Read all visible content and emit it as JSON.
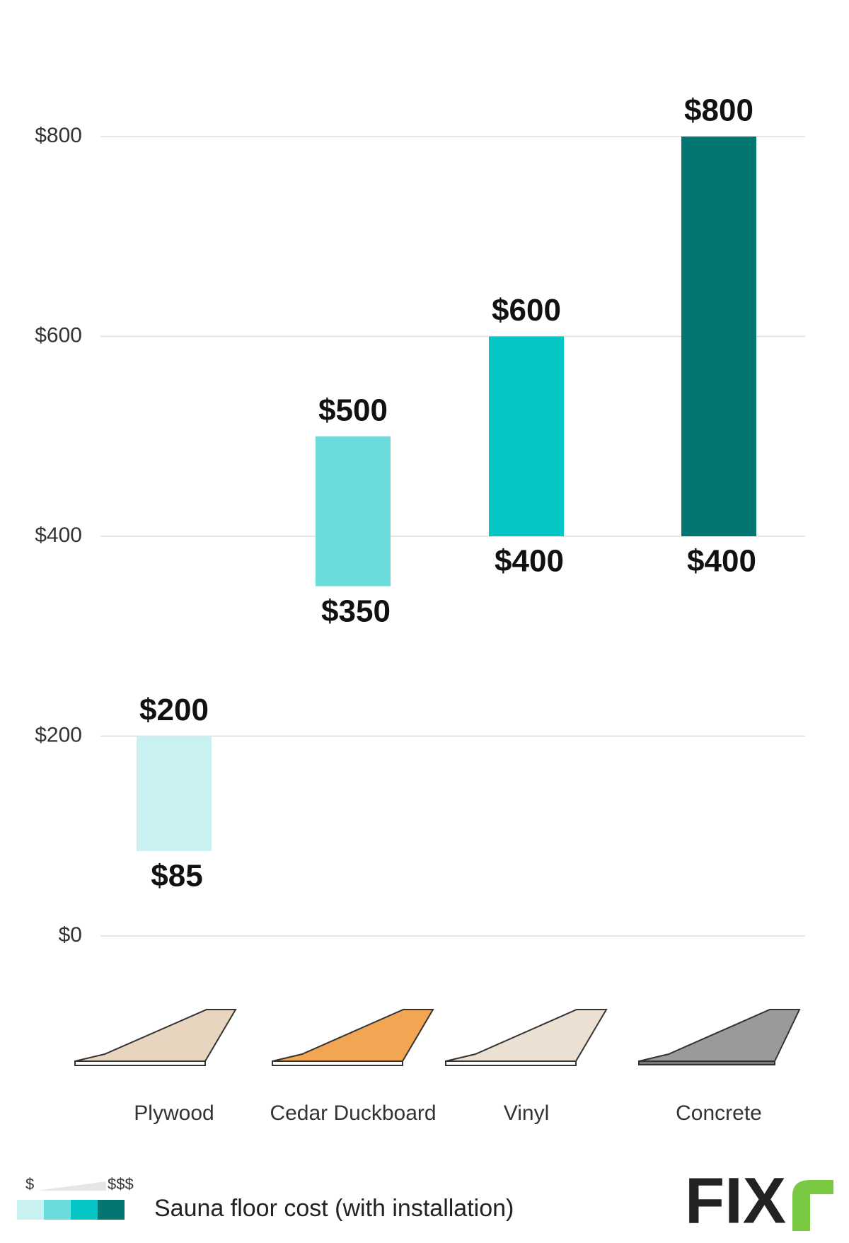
{
  "chart_data": {
    "type": "floating-bar",
    "categories": [
      "Plywood",
      "Cedar Duckboard",
      "Vinyl",
      "Concrete"
    ],
    "low": [
      85,
      350,
      400,
      400
    ],
    "high": [
      200,
      500,
      600,
      800
    ],
    "low_labels": [
      "$85",
      "$350",
      "$400",
      "$400"
    ],
    "high_labels": [
      "$200",
      "$500",
      "$600",
      "$800"
    ],
    "colors": [
      "#c9f1f1",
      "#6adcdc",
      "#05c5c5",
      "#017672"
    ],
    "ylim": [
      0,
      800
    ],
    "yticks": [
      {
        "value": 0,
        "label": "$0"
      },
      {
        "value": 200,
        "label": "$200"
      },
      {
        "value": 400,
        "label": "$400"
      },
      {
        "value": 600,
        "label": "$600"
      },
      {
        "value": 800,
        "label": "$800"
      }
    ],
    "grid": true,
    "legend": {
      "title": "Sauna floor cost (with installation)",
      "low": "$",
      "high": "$$$"
    },
    "logo": "FIX"
  }
}
